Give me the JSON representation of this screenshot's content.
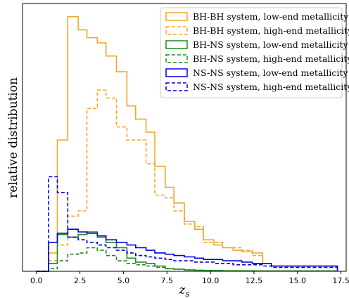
{
  "chart_data": {
    "type": "histogram",
    "xlabel": "z_s",
    "ylabel": "relative distribution",
    "xlim": [
      -0.8,
      17.8
    ],
    "ylim": [
      0,
      1.02
    ],
    "xticks": [
      0.0,
      2.5,
      5.0,
      7.5,
      10.0,
      12.5,
      15.0,
      17.5
    ],
    "xtick_labels": [
      "0.0",
      "2.5",
      "5.0",
      "7.5",
      "10.0",
      "12.5",
      "15.0",
      "17.5"
    ],
    "yticks_shown": false,
    "grid": false,
    "legend_position": "top-right",
    "bin_edges": [
      0.7,
      1.2,
      1.8,
      2.4,
      2.9,
      3.5,
      4.0,
      4.6,
      5.2,
      5.7,
      6.3,
      6.8,
      7.4,
      7.9,
      8.5,
      9.1,
      9.6,
      10.2,
      10.7,
      11.3,
      11.8,
      12.4,
      13.0,
      13.5,
      17.3
    ],
    "series": [
      {
        "name": "BH-BH system, low-end metallicity",
        "color": "#f5a623",
        "style": "solid",
        "start": 0.0,
        "values": [
          0.07,
          0.5,
          0.97,
          0.92,
          0.89,
          0.87,
          0.82,
          0.76,
          0.63,
          0.58,
          0.53,
          0.4,
          0.32,
          0.26,
          0.19,
          0.16,
          0.12,
          0.1,
          0.09,
          0.08,
          0.075,
          0.07,
          0.03,
          0.02
        ]
      },
      {
        "name": "BH-BH system, high-end metallicity",
        "color": "#f5a623",
        "style": "dashed",
        "start": 0.0,
        "values": [
          0.04,
          0.1,
          0.21,
          0.23,
          0.62,
          0.69,
          0.66,
          0.55,
          0.5,
          0.5,
          0.41,
          0.29,
          0.28,
          0.23,
          0.18,
          0.17,
          0.11,
          0.11,
          0.09,
          0.09,
          0.08,
          0.06,
          0.03,
          0.02
        ]
      },
      {
        "name": "BH-NS system, low-end metallicity",
        "color": "#1f8a1f",
        "style": "solid",
        "start": 0.0,
        "values": [
          0.03,
          0.14,
          0.13,
          0.14,
          0.15,
          0.13,
          0.11,
          0.09,
          0.05,
          0.035,
          0.03,
          0.02,
          0.01,
          0.008,
          0.005,
          0.004,
          0.003,
          0.003,
          0.002,
          0.002,
          0.002,
          0.001,
          0.001,
          0.001
        ]
      },
      {
        "name": "BH-NS system, high-end metallicity",
        "color": "#1f8a1f",
        "style": "dashed",
        "start": 0.0,
        "values": [
          0.01,
          0.04,
          0.065,
          0.07,
          0.09,
          0.08,
          0.06,
          0.04,
          0.03,
          0.025,
          0.02,
          0.015,
          0.01,
          0.008,
          0.005,
          0.004,
          0.003,
          0.002,
          0.002,
          0.002,
          0.001,
          0.001,
          0.001,
          0.001
        ]
      },
      {
        "name": "NS-NS system, low-end metallicity",
        "color": "#0000dd",
        "style": "solid",
        "start": 0.0,
        "values": [
          0.11,
          0.145,
          0.16,
          0.15,
          0.145,
          0.135,
          0.12,
          0.11,
          0.1,
          0.09,
          0.08,
          0.07,
          0.065,
          0.06,
          0.055,
          0.05,
          0.045,
          0.045,
          0.04,
          0.04,
          0.035,
          0.03,
          0.03,
          0.02
        ]
      },
      {
        "name": "NS-NS system, high-end metallicity",
        "color": "#0000dd",
        "style": "dashed",
        "start": 0.0,
        "values": [
          0.36,
          0.3,
          0.13,
          0.12,
          0.11,
          0.1,
          0.09,
          0.08,
          0.07,
          0.06,
          0.055,
          0.05,
          0.045,
          0.04,
          0.04,
          0.035,
          0.035,
          0.03,
          0.03,
          0.025,
          0.025,
          0.025,
          0.02,
          0.015
        ]
      }
    ]
  }
}
